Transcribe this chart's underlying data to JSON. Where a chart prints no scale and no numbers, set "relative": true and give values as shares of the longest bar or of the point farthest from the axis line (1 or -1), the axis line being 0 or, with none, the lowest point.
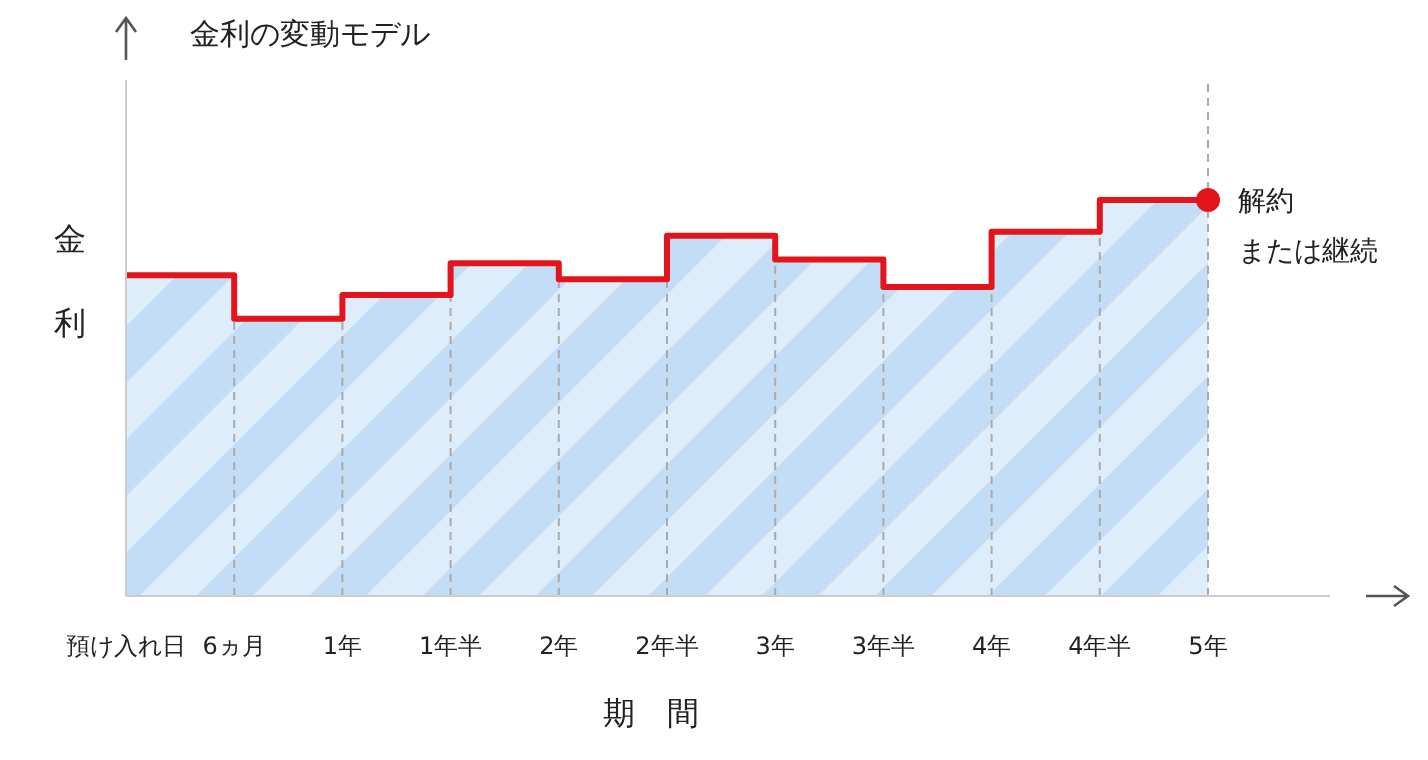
{
  "chart_data": {
    "type": "step",
    "title": "金利の変動モデル",
    "ylabel": "金利",
    "xlabel": "期　間",
    "relative": true,
    "grid": "x",
    "categories": [
      "預け入れ日",
      "6ヵ月",
      "1年",
      "1年半",
      "2年",
      "2年半",
      "3年",
      "3年半",
      "4年",
      "4年半",
      "5年"
    ],
    "series": [
      {
        "color": "#e3141c",
        "values": [
          0.81,
          0.7,
          0.76,
          0.84,
          0.8,
          0.91,
          0.85,
          0.78,
          0.92,
          1,
          1
        ]
      }
    ],
    "annotations": [
      {
        "text": "解約",
        "x": "5年",
        "y": 1
      },
      {
        "text": "または継続",
        "x": "5年",
        "y": 1
      }
    ]
  }
}
